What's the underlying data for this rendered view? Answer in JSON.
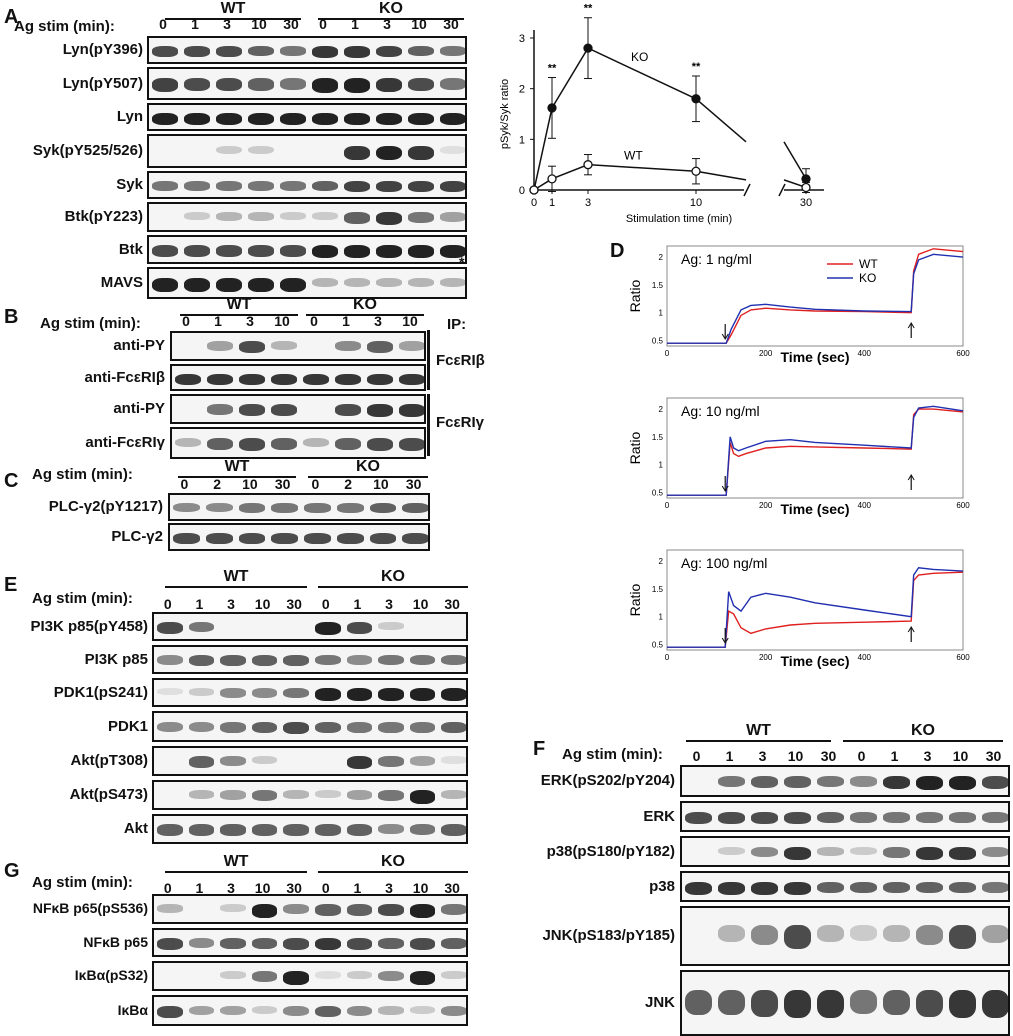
{
  "panels": {
    "A": "A",
    "B": "B",
    "C": "C",
    "D": "D",
    "E": "E",
    "F": "F",
    "G": "G"
  },
  "A": {
    "stim_label": "Ag stim (min):",
    "groups": [
      "WT",
      "KO"
    ],
    "ticks": [
      "0",
      "1",
      "3",
      "10",
      "30",
      "0",
      "1",
      "3",
      "10",
      "30"
    ],
    "rows": [
      "Lyn(pY396)",
      "Lyn(pY507)",
      "Lyn",
      "Syk(pY525/526)",
      "Syk",
      "Btk(pY223)",
      "Btk",
      "MAVS"
    ],
    "asterisk": "*"
  },
  "B": {
    "stim_label": "Ag stim (min):",
    "groups": [
      "WT",
      "KO"
    ],
    "ticks": [
      "0",
      "1",
      "3",
      "10",
      "0",
      "1",
      "3",
      "10"
    ],
    "rows": [
      "anti-PY",
      "anti-FcεRIβ",
      "anti-PY",
      "anti-FcεRIγ"
    ],
    "ip_title": "IP:",
    "ip_labels": [
      "FcεRIβ",
      "FcεRIγ"
    ]
  },
  "C": {
    "stim_label": "Ag stim (min):",
    "groups": [
      "WT",
      "KO"
    ],
    "ticks": [
      "0",
      "2",
      "10",
      "30",
      "0",
      "2",
      "10",
      "30"
    ],
    "rows": [
      "PLC-γ2(pY1217)",
      "PLC-γ2"
    ]
  },
  "E": {
    "stim_label": "Ag stim (min):",
    "groups": [
      "WT",
      "KO"
    ],
    "ticks": [
      "0",
      "1",
      "3",
      "10",
      "30",
      "0",
      "1",
      "3",
      "10",
      "30"
    ],
    "rows": [
      "PI3K p85(pY458)",
      "PI3K p85",
      "PDK1(pS241)",
      "PDK1",
      "Akt(pT308)",
      "Akt(pS473)",
      "Akt"
    ]
  },
  "F": {
    "stim_label": "Ag stim (min):",
    "groups": [
      "WT",
      "KO"
    ],
    "ticks": [
      "0",
      "1",
      "3",
      "10",
      "30",
      "0",
      "1",
      "3",
      "10",
      "30"
    ],
    "rows": [
      "ERK(pS202/pY204)",
      "ERK",
      "p38(pS180/pY182)",
      "p38",
      "JNK(pS183/pY185)",
      "JNK"
    ]
  },
  "G": {
    "stim_label": "Ag stim (min):",
    "groups": [
      "WT",
      "KO"
    ],
    "ticks": [
      "0",
      "1",
      "3",
      "10",
      "30",
      "0",
      "1",
      "3",
      "10",
      "30"
    ],
    "rows": [
      "NFκB p65(pS536)",
      "NFκB p65",
      "IκBα(pS32)",
      "IκBα"
    ]
  },
  "chart_data": [
    {
      "type": "line",
      "ylabel": "pSyk/Syk ratio",
      "xlabel": "Stimulation time (min)",
      "x": [
        0,
        1,
        3,
        10,
        30
      ],
      "xticks": [
        "0",
        "1",
        "3",
        "10",
        "30"
      ],
      "ylim": [
        0,
        3
      ],
      "yticks": [
        "0",
        "1",
        "2",
        "3"
      ],
      "series": [
        {
          "name": "KO",
          "values": [
            0,
            1.62,
            2.8,
            1.8,
            0.22
          ],
          "errors": [
            0,
            0.6,
            0.6,
            0.45,
            0.2
          ],
          "marker": "filled"
        },
        {
          "name": "WT",
          "values": [
            0,
            0.22,
            0.5,
            0.37,
            0.05
          ],
          "errors": [
            0,
            0.25,
            0.2,
            0.25,
            0.1
          ],
          "marker": "open"
        }
      ],
      "annotations": [
        "**",
        "**",
        "**"
      ],
      "annotation_x": [
        1,
        3,
        10
      ]
    },
    {
      "type": "line",
      "title": "Ag: 1 ng/ml",
      "xlabel": "Time (sec)",
      "ylabel": "Ratio",
      "xlim": [
        0,
        600
      ],
      "ylim": [
        0.4,
        2.2
      ],
      "xticks": [
        "0",
        "200",
        "400",
        "600"
      ],
      "yticks": [
        "0.5",
        "1",
        "1.5",
        "2"
      ],
      "legend": [
        "WT",
        "KO"
      ],
      "colors": {
        "WT": "#e02020",
        "KO": "#2030b0"
      },
      "series": [
        {
          "name": "WT",
          "x": [
            0,
            120,
            130,
            150,
            170,
            200,
            250,
            300,
            400,
            495,
            500,
            510,
            540,
            600
          ],
          "values": [
            0.45,
            0.45,
            0.6,
            0.95,
            1.05,
            1.08,
            1.05,
            1.03,
            1.02,
            1.0,
            1.75,
            2.05,
            2.15,
            2.1
          ]
        },
        {
          "name": "KO",
          "x": [
            0,
            120,
            130,
            150,
            170,
            200,
            250,
            300,
            400,
            495,
            500,
            510,
            540,
            600
          ],
          "values": [
            0.45,
            0.45,
            0.7,
            1.05,
            1.13,
            1.15,
            1.1,
            1.06,
            1.03,
            1.02,
            1.7,
            1.95,
            2.05,
            2.0
          ]
        }
      ]
    },
    {
      "type": "line",
      "title": "Ag: 10 ng/ml",
      "xlabel": "Time (sec)",
      "ylabel": "Ratio",
      "xlim": [
        0,
        600
      ],
      "ylim": [
        0.4,
        2.2
      ],
      "xticks": [
        "0",
        "200",
        "400",
        "600"
      ],
      "yticks": [
        "0.5",
        "1",
        "1.5",
        "2"
      ],
      "series": [
        {
          "name": "WT",
          "x": [
            0,
            120,
            128,
            135,
            145,
            160,
            200,
            250,
            300,
            400,
            495,
            500,
            510,
            540,
            600
          ],
          "values": [
            0.45,
            0.45,
            1.4,
            1.2,
            1.15,
            1.2,
            1.3,
            1.33,
            1.32,
            1.3,
            1.28,
            1.9,
            2.0,
            2.0,
            1.95
          ]
        },
        {
          "name": "KO",
          "x": [
            0,
            120,
            128,
            135,
            145,
            160,
            200,
            250,
            300,
            400,
            495,
            500,
            510,
            540,
            600
          ],
          "values": [
            0.45,
            0.45,
            1.5,
            1.3,
            1.25,
            1.3,
            1.42,
            1.45,
            1.4,
            1.35,
            1.3,
            1.85,
            2.02,
            2.05,
            1.97
          ]
        }
      ]
    },
    {
      "type": "line",
      "title": "Ag: 100 ng/ml",
      "xlabel": "Time (sec)",
      "ylabel": "Ratio",
      "xlim": [
        0,
        600
      ],
      "ylim": [
        0.4,
        2.2
      ],
      "xticks": [
        "0",
        "200",
        "400",
        "600"
      ],
      "yticks": [
        "0.5",
        "1",
        "1.5",
        "2"
      ],
      "series": [
        {
          "name": "WT",
          "x": [
            0,
            118,
            125,
            135,
            150,
            170,
            200,
            250,
            300,
            400,
            495,
            500,
            510,
            540,
            600
          ],
          "values": [
            0.45,
            0.45,
            1.1,
            1.05,
            0.8,
            0.7,
            0.78,
            0.85,
            0.88,
            0.9,
            0.92,
            1.65,
            1.75,
            1.78,
            1.8
          ]
        },
        {
          "name": "KO",
          "x": [
            0,
            118,
            125,
            135,
            150,
            170,
            200,
            250,
            300,
            400,
            495,
            500,
            510,
            540,
            600
          ],
          "values": [
            0.45,
            0.45,
            1.45,
            1.2,
            1.1,
            1.35,
            1.42,
            1.35,
            1.25,
            1.12,
            1.0,
            1.75,
            1.88,
            1.85,
            1.82
          ]
        }
      ]
    }
  ]
}
